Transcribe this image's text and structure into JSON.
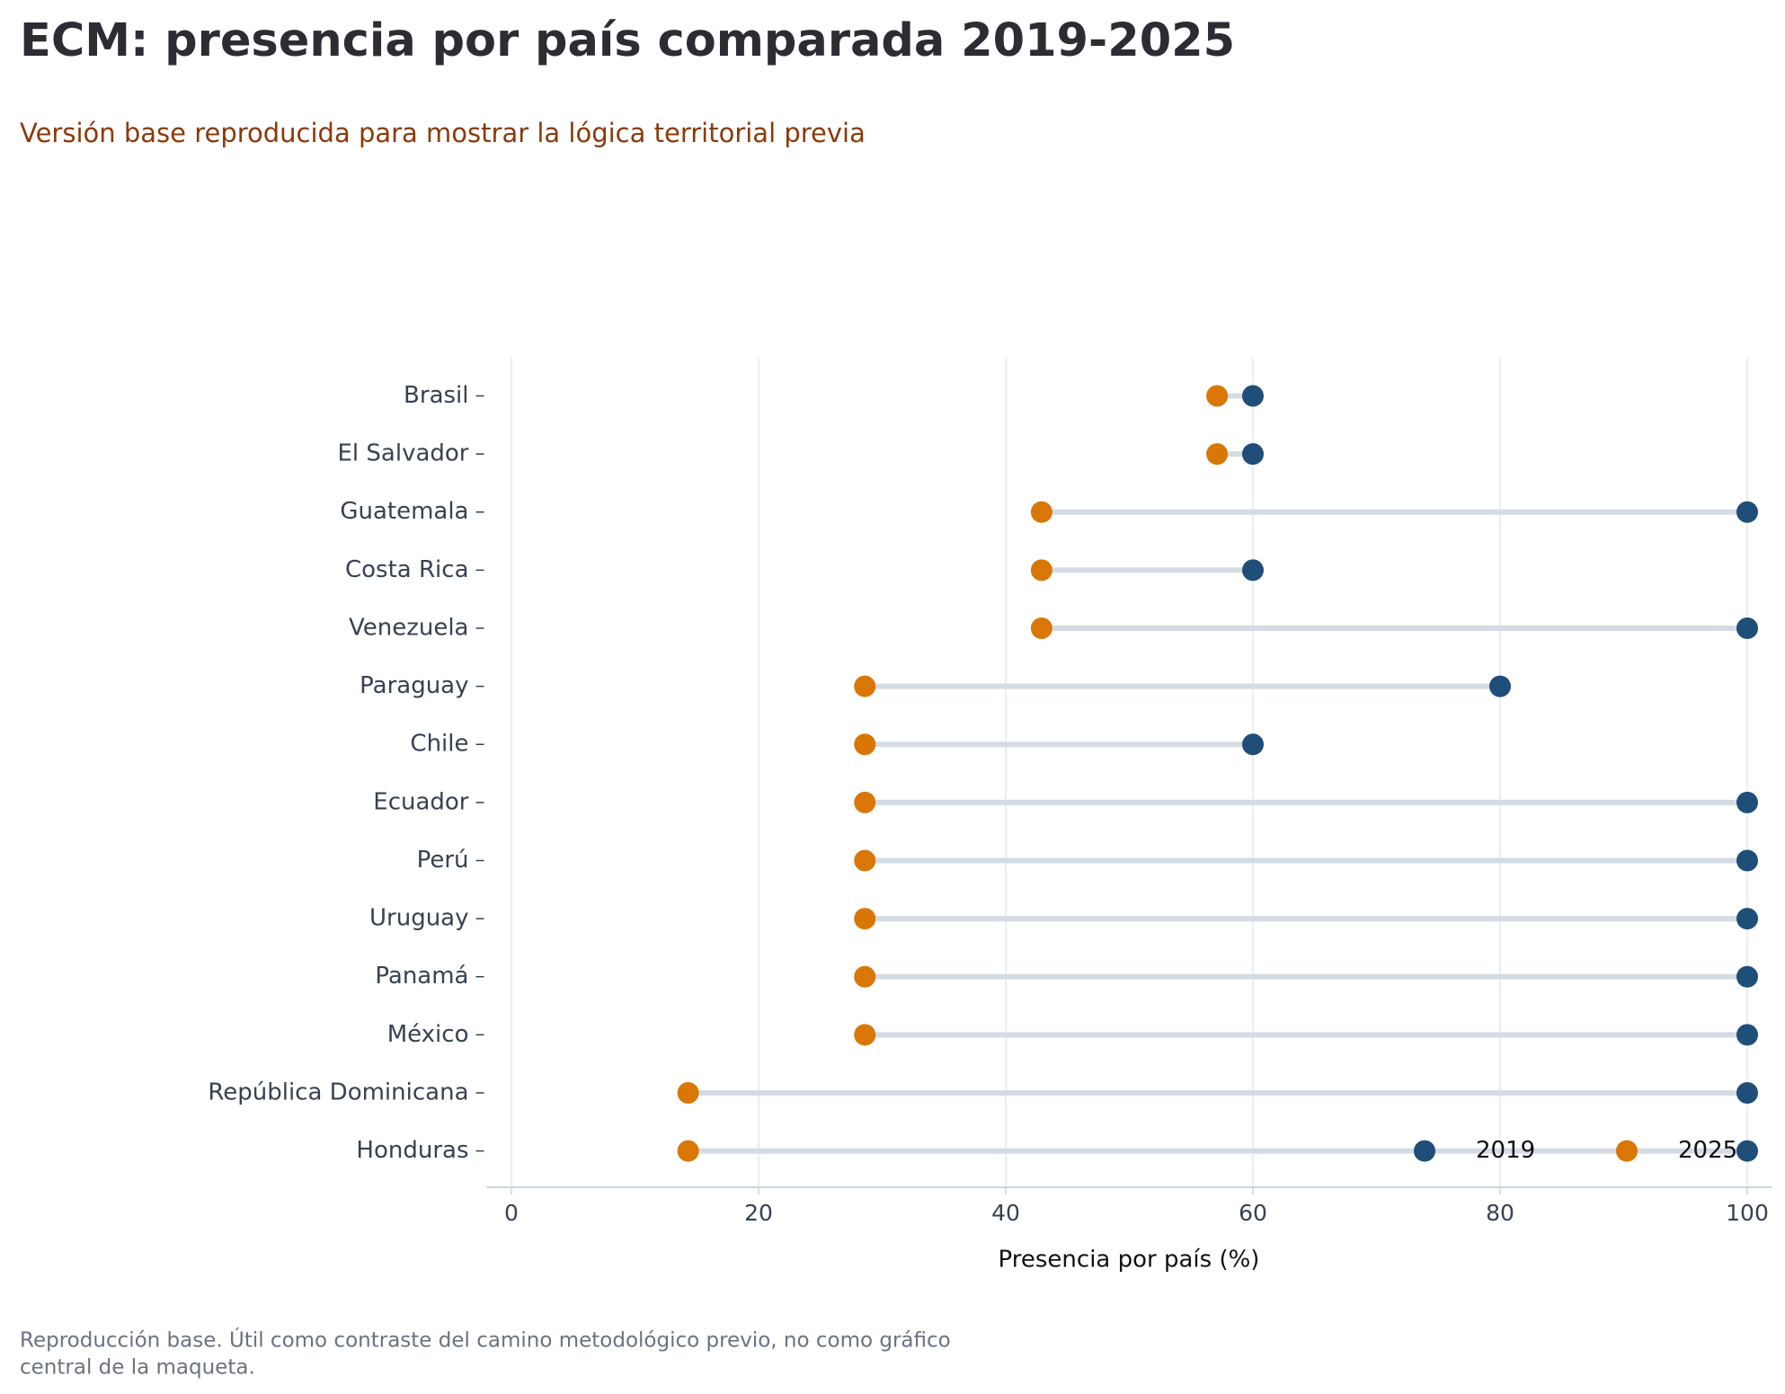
{
  "chart_data": {
    "type": "dumbbell",
    "title": "ECM: presencia por país comparada 2019-2025",
    "subtitle": "Versión base reproducida para mostrar la lógica territorial previa",
    "x_label": "Presencia por país (%)",
    "footnote": [
      "Reproducción base. Útil como contraste del camino metodológico previo, no como gráfico",
      "central de la maqueta."
    ],
    "categories": [
      "Brasil",
      "El Salvador",
      "Guatemala",
      "Costa Rica",
      "Venezuela",
      "Paraguay",
      "Chile",
      "Ecuador",
      "Perú",
      "Uruguay",
      "Panamá",
      "México",
      "República Dominicana",
      "Honduras"
    ],
    "series": [
      {
        "name": "2019",
        "color": "#1f4e79",
        "values": [
          60,
          60,
          100,
          60,
          100,
          80,
          60,
          100,
          100,
          100,
          100,
          100,
          100,
          100
        ]
      },
      {
        "name": "2025",
        "color": "#d97706",
        "values": [
          57.1,
          57.1,
          42.9,
          42.9,
          42.9,
          28.6,
          28.6,
          28.6,
          28.6,
          28.6,
          28.6,
          28.6,
          14.3,
          14.3
        ]
      }
    ],
    "connector_color": "#d5dbe3",
    "xlim": [
      -2,
      102
    ],
    "xticks": [
      0,
      20,
      40,
      60,
      80,
      100
    ],
    "grid": true,
    "legend": "lower right"
  }
}
